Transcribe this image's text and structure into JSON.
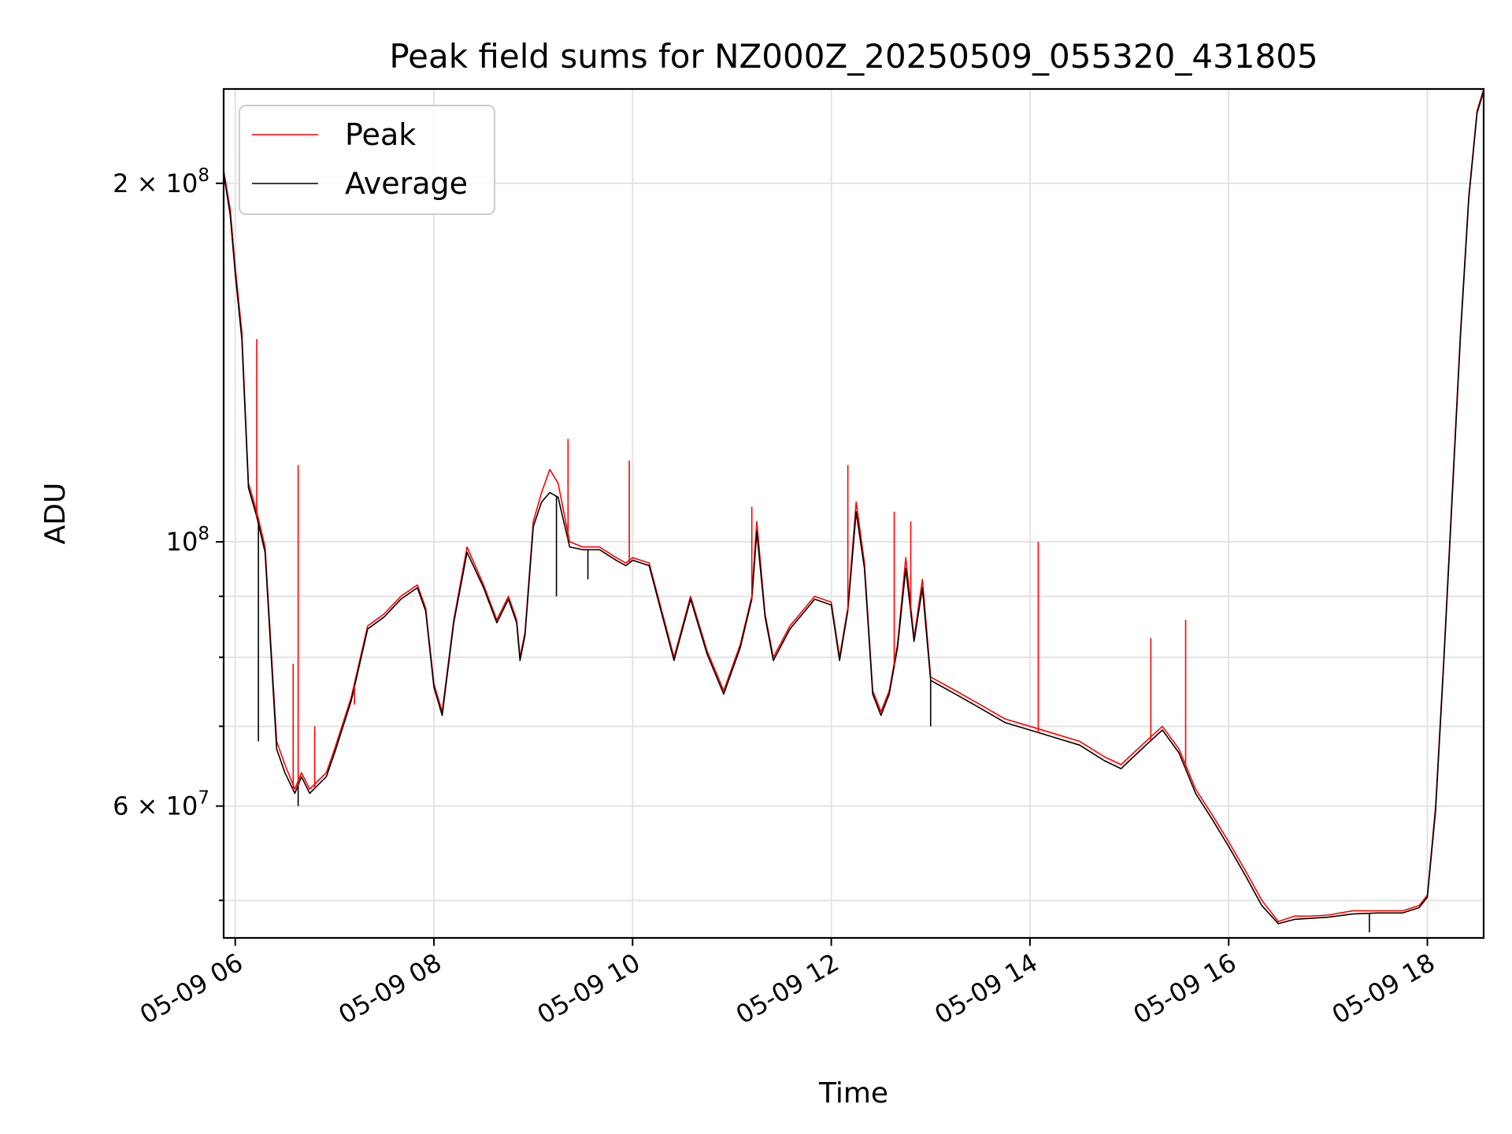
{
  "chart_data": {
    "type": "line",
    "title": "Peak field sums for NZ000Z_20250509_055320_431805",
    "xlabel": "Time",
    "ylabel": "ADU",
    "y_scale": "log",
    "ylim": [
      46500000,
      240000000
    ],
    "xlim": [
      "2025-05-09 05:53",
      "2025-05-09 18:34"
    ],
    "grid": true,
    "legend_position": "top-left",
    "x_tick_labels": [
      "05-09 06",
      "05-09 08",
      "05-09 10",
      "05-09 12",
      "05-09 14",
      "05-09 16",
      "05-09 18"
    ],
    "x_tick_values": [
      "2025-05-09 06:00",
      "2025-05-09 08:00",
      "2025-05-09 10:00",
      "2025-05-09 12:00",
      "2025-05-09 14:00",
      "2025-05-09 16:00",
      "2025-05-09 18:00"
    ],
    "y_tick_labels": [
      {
        "value": 200000000,
        "mantissa": "2",
        "exponent": "8"
      },
      {
        "value": 100000000,
        "mantissa": "",
        "exponent": "8"
      },
      {
        "value": 60000000,
        "mantissa": "6",
        "exponent": "7"
      }
    ],
    "y_minor_ticks": [
      50000000,
      70000000,
      80000000,
      90000000
    ],
    "series": [
      {
        "name": "Peak",
        "color": "#ff0000",
        "x": [
          "2025-05-09 05:53",
          "2025-05-09 05:57",
          "2025-05-09 06:00",
          "2025-05-09 06:04",
          "2025-05-09 06:08",
          "2025-05-09 06:13",
          "2025-05-09 06:18",
          "2025-05-09 06:25",
          "2025-05-09 06:30",
          "2025-05-09 06:36",
          "2025-05-09 06:40",
          "2025-05-09 06:45",
          "2025-05-09 06:50",
          "2025-05-09 06:55",
          "2025-05-09 07:00",
          "2025-05-09 07:10",
          "2025-05-09 07:20",
          "2025-05-09 07:30",
          "2025-05-09 07:40",
          "2025-05-09 07:50",
          "2025-05-09 07:55",
          "2025-05-09 08:00",
          "2025-05-09 08:05",
          "2025-05-09 08:12",
          "2025-05-09 08:20",
          "2025-05-09 08:30",
          "2025-05-09 08:38",
          "2025-05-09 08:45",
          "2025-05-09 08:50",
          "2025-05-09 08:52",
          "2025-05-09 08:55",
          "2025-05-09 09:00",
          "2025-05-09 09:05",
          "2025-05-09 09:10",
          "2025-05-09 09:15",
          "2025-05-09 09:22",
          "2025-05-09 09:30",
          "2025-05-09 09:40",
          "2025-05-09 09:50",
          "2025-05-09 09:56",
          "2025-05-09 10:00",
          "2025-05-09 10:10",
          "2025-05-09 10:20",
          "2025-05-09 10:25",
          "2025-05-09 10:35",
          "2025-05-09 10:45",
          "2025-05-09 10:55",
          "2025-05-09 11:05",
          "2025-05-09 11:12",
          "2025-05-09 11:15",
          "2025-05-09 11:20",
          "2025-05-09 11:25",
          "2025-05-09 11:35",
          "2025-05-09 11:50",
          "2025-05-09 12:00",
          "2025-05-09 12:05",
          "2025-05-09 12:10",
          "2025-05-09 12:15",
          "2025-05-09 12:20",
          "2025-05-09 12:25",
          "2025-05-09 12:30",
          "2025-05-09 12:35",
          "2025-05-09 12:40",
          "2025-05-09 12:45",
          "2025-05-09 12:50",
          "2025-05-09 12:55",
          "2025-05-09 13:00",
          "2025-05-09 13:15",
          "2025-05-09 13:30",
          "2025-05-09 13:45",
          "2025-05-09 14:00",
          "2025-05-09 14:15",
          "2025-05-09 14:30",
          "2025-05-09 14:45",
          "2025-05-09 14:55",
          "2025-05-09 15:00",
          "2025-05-09 15:10",
          "2025-05-09 15:20",
          "2025-05-09 15:30",
          "2025-05-09 15:40",
          "2025-05-09 15:50",
          "2025-05-09 16:00",
          "2025-05-09 16:10",
          "2025-05-09 16:20",
          "2025-05-09 16:30",
          "2025-05-09 16:40",
          "2025-05-09 16:50",
          "2025-05-09 17:00",
          "2025-05-09 17:15",
          "2025-05-09 17:30",
          "2025-05-09 17:45",
          "2025-05-09 17:55",
          "2025-05-09 18:00",
          "2025-05-09 18:05",
          "2025-05-09 18:10",
          "2025-05-09 18:15",
          "2025-05-09 18:20",
          "2025-05-09 18:25",
          "2025-05-09 18:30",
          "2025-05-09 18:34"
        ],
        "y": [
          205000000,
          190000000,
          170000000,
          150000000,
          112000000,
          106000000,
          99000000,
          68000000,
          65000000,
          62000000,
          64000000,
          62000000,
          63000000,
          64000000,
          67000000,
          74000000,
          85000000,
          87000000,
          90000000,
          92000000,
          88000000,
          76000000,
          72000000,
          86000000,
          99000000,
          92000000,
          86000000,
          90000000,
          86000000,
          80000000,
          84000000,
          104000000,
          110000000,
          115000000,
          112000000,
          100000000,
          99000000,
          99000000,
          97000000,
          96000000,
          97000000,
          96000000,
          85000000,
          80000000,
          90000000,
          81000000,
          75000000,
          82000000,
          90000000,
          104000000,
          87000000,
          80000000,
          85000000,
          90000000,
          89000000,
          80000000,
          88000000,
          108000000,
          96000000,
          75000000,
          72000000,
          75000000,
          82000000,
          97000000,
          83000000,
          93000000,
          77000000,
          75000000,
          73000000,
          71000000,
          70000000,
          69000000,
          68000000,
          66000000,
          65000000,
          66000000,
          68000000,
          70000000,
          67000000,
          62000000,
          59000000,
          56000000,
          53000000,
          50000000,
          48000000,
          48500000,
          48500000,
          48600000,
          49000000,
          49000000,
          49000000,
          49500000,
          50500000,
          60000000,
          80000000,
          110000000,
          150000000,
          195000000,
          230000000,
          240000000
        ]
      },
      {
        "name": "Average",
        "color": "#000000",
        "x": [
          "2025-05-09 05:53",
          "2025-05-09 05:57",
          "2025-05-09 06:00",
          "2025-05-09 06:04",
          "2025-05-09 06:08",
          "2025-05-09 06:13",
          "2025-05-09 06:18",
          "2025-05-09 06:25",
          "2025-05-09 06:30",
          "2025-05-09 06:36",
          "2025-05-09 06:40",
          "2025-05-09 06:45",
          "2025-05-09 06:50",
          "2025-05-09 06:55",
          "2025-05-09 07:00",
          "2025-05-09 07:10",
          "2025-05-09 07:20",
          "2025-05-09 07:30",
          "2025-05-09 07:40",
          "2025-05-09 07:50",
          "2025-05-09 07:55",
          "2025-05-09 08:00",
          "2025-05-09 08:05",
          "2025-05-09 08:12",
          "2025-05-09 08:20",
          "2025-05-09 08:30",
          "2025-05-09 08:38",
          "2025-05-09 08:45",
          "2025-05-09 08:50",
          "2025-05-09 08:52",
          "2025-05-09 08:55",
          "2025-05-09 09:00",
          "2025-05-09 09:05",
          "2025-05-09 09:10",
          "2025-05-09 09:15",
          "2025-05-09 09:22",
          "2025-05-09 09:30",
          "2025-05-09 09:40",
          "2025-05-09 09:50",
          "2025-05-09 09:56",
          "2025-05-09 10:00",
          "2025-05-09 10:10",
          "2025-05-09 10:20",
          "2025-05-09 10:25",
          "2025-05-09 10:35",
          "2025-05-09 10:45",
          "2025-05-09 10:55",
          "2025-05-09 11:05",
          "2025-05-09 11:12",
          "2025-05-09 11:15",
          "2025-05-09 11:20",
          "2025-05-09 11:25",
          "2025-05-09 11:35",
          "2025-05-09 11:50",
          "2025-05-09 12:00",
          "2025-05-09 12:05",
          "2025-05-09 12:10",
          "2025-05-09 12:15",
          "2025-05-09 12:20",
          "2025-05-09 12:25",
          "2025-05-09 12:30",
          "2025-05-09 12:35",
          "2025-05-09 12:40",
          "2025-05-09 12:45",
          "2025-05-09 12:50",
          "2025-05-09 12:55",
          "2025-05-09 13:00",
          "2025-05-09 13:15",
          "2025-05-09 13:30",
          "2025-05-09 13:45",
          "2025-05-09 14:00",
          "2025-05-09 14:15",
          "2025-05-09 14:30",
          "2025-05-09 14:45",
          "2025-05-09 14:55",
          "2025-05-09 15:00",
          "2025-05-09 15:10",
          "2025-05-09 15:20",
          "2025-05-09 15:30",
          "2025-05-09 15:40",
          "2025-05-09 15:50",
          "2025-05-09 16:00",
          "2025-05-09 16:10",
          "2025-05-09 16:20",
          "2025-05-09 16:30",
          "2025-05-09 16:40",
          "2025-05-09 16:50",
          "2025-05-09 17:00",
          "2025-05-09 17:15",
          "2025-05-09 17:30",
          "2025-05-09 17:45",
          "2025-05-09 17:55",
          "2025-05-09 18:00",
          "2025-05-09 18:05",
          "2025-05-09 18:10",
          "2025-05-09 18:15",
          "2025-05-09 18:20",
          "2025-05-09 18:25",
          "2025-05-09 18:30",
          "2025-05-09 18:34"
        ],
        "y": [
          204000000,
          188000000,
          168000000,
          148000000,
          111000000,
          105000000,
          98000000,
          67000000,
          64000000,
          61500000,
          63500000,
          61500000,
          62500000,
          63500000,
          66500000,
          73500000,
          84500000,
          86500000,
          89500000,
          91500000,
          87500000,
          75500000,
          71500000,
          85500000,
          98000000,
          91500000,
          85500000,
          89500000,
          85500000,
          79500000,
          83500000,
          103000000,
          108000000,
          110000000,
          109000000,
          99000000,
          98500000,
          98500000,
          96500000,
          95500000,
          96500000,
          95500000,
          84500000,
          79500000,
          89500000,
          80500000,
          74500000,
          81500000,
          89500000,
          102000000,
          86500000,
          79500000,
          84500000,
          89500000,
          88500000,
          79500000,
          87500000,
          106000000,
          95000000,
          74500000,
          71500000,
          74500000,
          81500000,
          95000000,
          82500000,
          91500000,
          76500000,
          74500000,
          72500000,
          70500000,
          69500000,
          68500000,
          67500000,
          65500000,
          64500000,
          65500000,
          67500000,
          69500000,
          66500000,
          61500000,
          58500000,
          55500000,
          52500000,
          49500000,
          47800000,
          48200000,
          48300000,
          48400000,
          48700000,
          48800000,
          48800000,
          49300000,
          50300000,
          59500000,
          79500000,
          109000000,
          149000000,
          194000000,
          229000000,
          239000000
        ]
      }
    ],
    "peak_spikes": [
      {
        "x": "2025-05-09 06:13",
        "y": 148000000
      },
      {
        "x": "2025-05-09 06:35",
        "y": 79000000
      },
      {
        "x": "2025-05-09 06:38",
        "y": 116000000
      },
      {
        "x": "2025-05-09 06:48",
        "y": 70000000
      },
      {
        "x": "2025-05-09 07:12",
        "y": 73000000
      },
      {
        "x": "2025-05-09 09:21",
        "y": 122000000
      },
      {
        "x": "2025-05-09 09:58",
        "y": 117000000
      },
      {
        "x": "2025-05-09 11:12",
        "y": 107000000
      },
      {
        "x": "2025-05-09 12:10",
        "y": 116000000
      },
      {
        "x": "2025-05-09 12:38",
        "y": 106000000
      },
      {
        "x": "2025-05-09 12:48",
        "y": 104000000
      },
      {
        "x": "2025-05-09 14:05",
        "y": 100000000
      },
      {
        "x": "2025-05-09 15:13",
        "y": 83000000
      },
      {
        "x": "2025-05-09 15:34",
        "y": 86000000
      }
    ],
    "average_dips": [
      {
        "x": "2025-05-09 06:14",
        "y": 68000000
      },
      {
        "x": "2025-05-09 06:38",
        "y": 60000000
      },
      {
        "x": "2025-05-09 09:14",
        "y": 90000000
      },
      {
        "x": "2025-05-09 09:33",
        "y": 93000000
      },
      {
        "x": "2025-05-09 13:00",
        "y": 70000000
      },
      {
        "x": "2025-05-09 17:25",
        "y": 47000000
      }
    ]
  }
}
